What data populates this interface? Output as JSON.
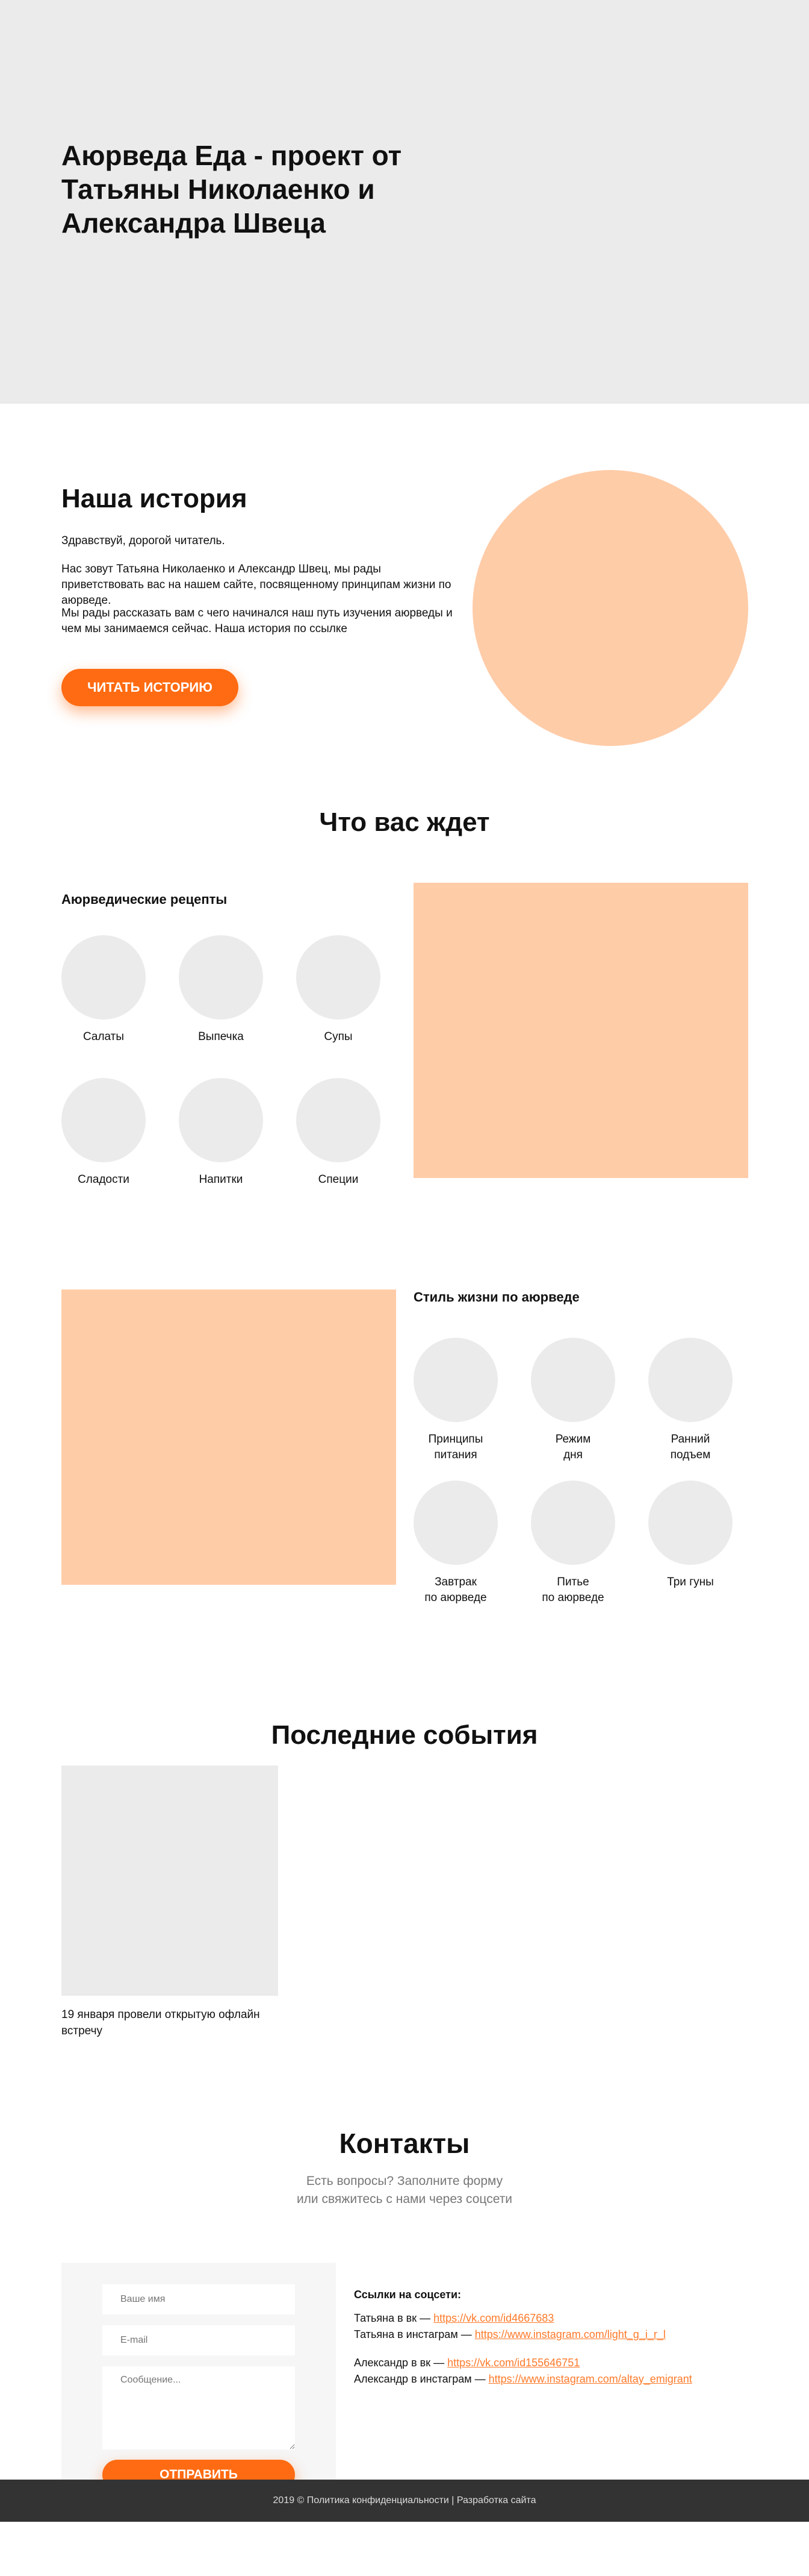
{
  "hero": {
    "title": "Аюрведа Еда - проект от Татьяны Николаенко и Александра Швеца"
  },
  "story": {
    "title": "Наша история",
    "p1": "Здравствуй, дорогой читатель.",
    "p2": "Нас зовут Татьяна Николаенко и Александр Швец, мы рады приветствовать вас на нашем сайте, посвященному принципам жизни по аюрведе.",
    "p3": "Мы рады рассказать вам с чего начинался наш путь изучения аюрведы и чем мы занимаемся сейчас. Наша история по ссылке",
    "button": "Читать историю"
  },
  "await": {
    "title": "Что вас ждет",
    "recipes": {
      "title": "Аюрведические рецепты",
      "items": [
        "Салаты",
        "Выпечка",
        "Супы",
        "Сладости",
        "Напитки",
        "Специи"
      ]
    },
    "lifestyle": {
      "title": "Стиль жизни по аюрведе",
      "items": [
        "Принципы\nпитания",
        "Режим\nдня",
        "Ранний\nподъем",
        "Завтрак\nпо аюрведе",
        "Питье\nпо аюрведе",
        "Три гуны"
      ]
    }
  },
  "events": {
    "title": "Последние события",
    "caption": "19 января провели открытую офлайн встречу"
  },
  "contacts": {
    "title": "Контакты",
    "lead1": "Есть вопросы? Заполните форму",
    "lead2": "или свяжитесь с нами через соцсети",
    "form": {
      "name_placeholder": "Ваше имя",
      "email_placeholder": "E-mail",
      "message_placeholder": "Сообщение...",
      "submit": "Отправить"
    },
    "links_title": "Ссылки на соцсети:",
    "tatiana_vk_label": "Татьяна в вк — ",
    "tatiana_vk_url": "https://vk.com/id4667683",
    "tatiana_ig_label": "Татьяна в инстаграм — ",
    "tatiana_ig_url": "https://www.instagram.com/light_g_i_r_l",
    "alex_vk_label": "Александр в вк — ",
    "alex_vk_url": "https://vk.com/id155646751",
    "alex_ig_label": "Александр в инстаграм — ",
    "alex_ig_url": "https://www.instagram.com/altay_emigrant"
  },
  "footer": {
    "text": "2019 © Политика конфиденциальности | Разработка сайта"
  },
  "colors": {
    "accent": "#ff6b12",
    "peach": "#ffcca8",
    "placeholder_gray": "#ebebeb",
    "footer_bg": "#333333"
  }
}
